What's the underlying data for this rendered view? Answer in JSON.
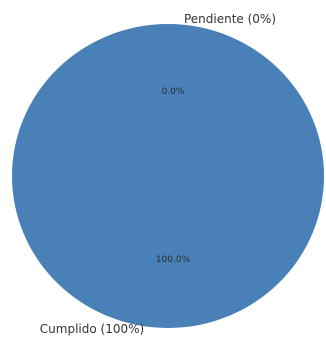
{
  "chart_data": {
    "type": "pie",
    "categories": [
      "Pendiente (0%)",
      "Cumplido (100%)"
    ],
    "values": [
      0,
      100
    ],
    "percent_labels": [
      "0.0%",
      "100.0%"
    ],
    "colors": [
      "#e08a3c",
      "#4a80b8"
    ],
    "title": "",
    "legend": "none"
  }
}
